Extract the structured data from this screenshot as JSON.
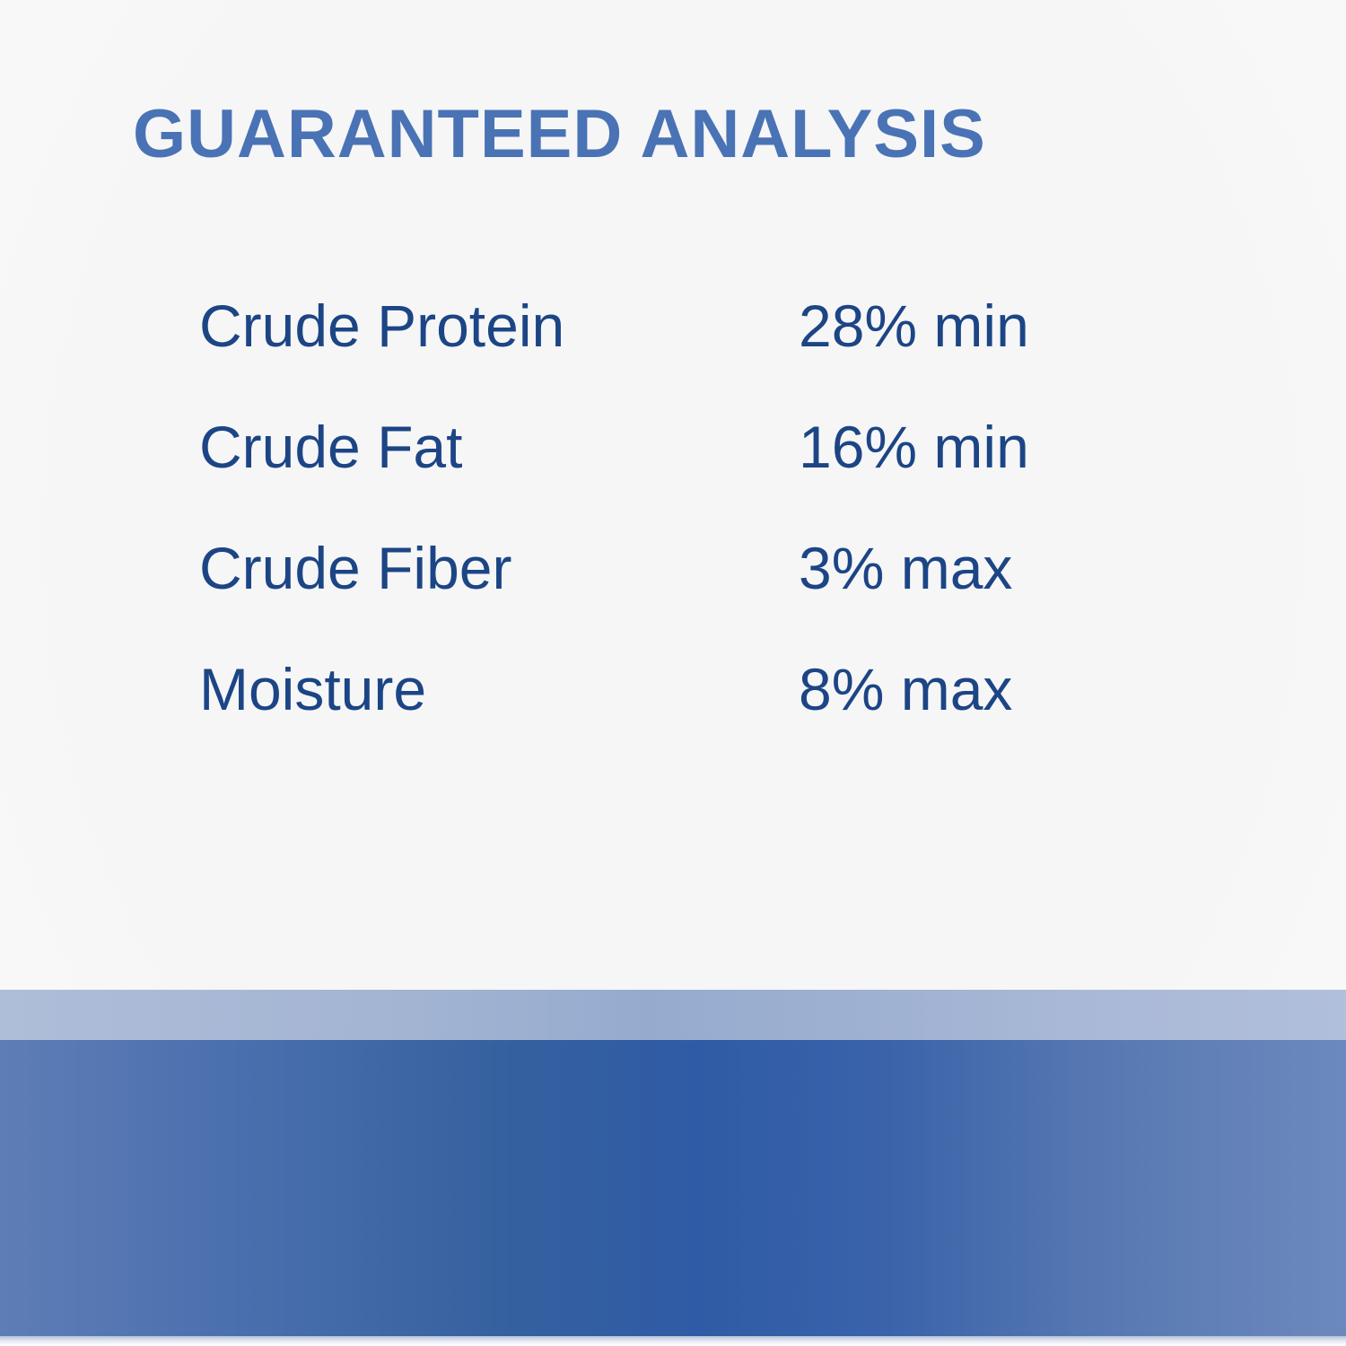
{
  "panel": {
    "title": "GUARANTEED ANALYSIS",
    "rows": [
      {
        "label": "Crude Protein",
        "value": "28% min"
      },
      {
        "label": "Crude Fat",
        "value": "16% min"
      },
      {
        "label": "Crude Fiber",
        "value": "3% max"
      },
      {
        "label": "Moisture",
        "value": "8% max"
      }
    ]
  },
  "colors": {
    "background": "#f7f7f8",
    "title_blue": "#4a73b5",
    "text_navy": "#1c4585",
    "band_light": "#a9b9d6",
    "band_dark_center": "#2f5ba6",
    "band_dark_edge": "#6c89bd"
  }
}
